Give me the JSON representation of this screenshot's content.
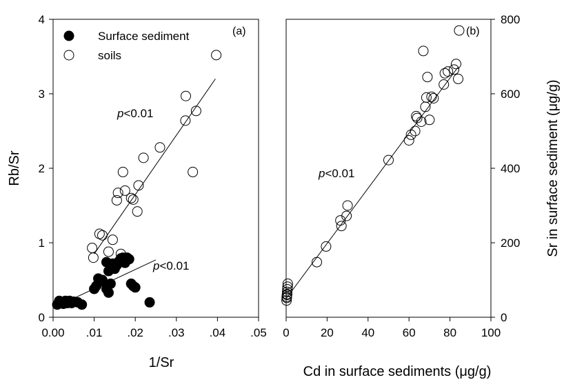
{
  "chart_data": [
    {
      "type": "scatter",
      "panel_label": "(a)",
      "xlabel": "1/Sr",
      "ylabel": "Rb/Sr",
      "xlim": [
        0.0,
        0.05
      ],
      "ylim": [
        0,
        4
      ],
      "x_ticks": [
        0.0,
        0.01,
        0.02,
        0.03,
        0.04,
        0.05
      ],
      "x_tick_labels": [
        "0.00",
        ".01",
        ".02",
        ".03",
        ".04",
        ".05"
      ],
      "y_ticks": [
        0,
        1,
        2,
        3,
        4
      ],
      "y_tick_labels": [
        "0",
        "1",
        "2",
        "3",
        "4"
      ],
      "legend_position": "top-left",
      "series": [
        {
          "name": "Surface sediment",
          "marker": "filled-circle",
          "points": [
            [
              0.001,
              0.17
            ],
            [
              0.0015,
              0.22
            ],
            [
              0.002,
              0.2
            ],
            [
              0.0025,
              0.18
            ],
            [
              0.003,
              0.22
            ],
            [
              0.0035,
              0.19
            ],
            [
              0.004,
              0.22
            ],
            [
              0.0045,
              0.19
            ],
            [
              0.005,
              0.21
            ],
            [
              0.006,
              0.2
            ],
            [
              0.007,
              0.17
            ],
            [
              0.01,
              0.38
            ],
            [
              0.0105,
              0.42
            ],
            [
              0.011,
              0.52
            ],
            [
              0.0115,
              0.48
            ],
            [
              0.012,
              0.5
            ],
            [
              0.013,
              0.38
            ],
            [
              0.0135,
              0.33
            ],
            [
              0.014,
              0.45
            ],
            [
              0.013,
              0.74
            ],
            [
              0.0135,
              0.62
            ],
            [
              0.014,
              0.68
            ],
            [
              0.0145,
              0.72
            ],
            [
              0.015,
              0.65
            ],
            [
              0.0155,
              0.7
            ],
            [
              0.016,
              0.75
            ],
            [
              0.0165,
              0.79
            ],
            [
              0.017,
              0.8
            ],
            [
              0.0175,
              0.73
            ],
            [
              0.018,
              0.8
            ],
            [
              0.0185,
              0.78
            ],
            [
              0.019,
              0.45
            ],
            [
              0.0195,
              0.42
            ],
            [
              0.02,
              0.4
            ],
            [
              0.0235,
              0.2
            ]
          ],
          "fit_line": {
            "x": [
              0.001,
              0.025
            ],
            "y": [
              0.15,
              0.77
            ]
          },
          "annotation": "p<0.01"
        },
        {
          "name": "soils",
          "marker": "open-circle",
          "points": [
            [
              0.0095,
              0.93
            ],
            [
              0.0098,
              0.8
            ],
            [
              0.0113,
              1.12
            ],
            [
              0.012,
              1.1
            ],
            [
              0.0135,
              0.88
            ],
            [
              0.0145,
              1.04
            ],
            [
              0.0155,
              1.57
            ],
            [
              0.0158,
              1.67
            ],
            [
              0.0165,
              0.85
            ],
            [
              0.017,
              1.95
            ],
            [
              0.0175,
              1.7
            ],
            [
              0.019,
              1.6
            ],
            [
              0.0195,
              1.58
            ],
            [
              0.0205,
              1.42
            ],
            [
              0.0208,
              1.77
            ],
            [
              0.022,
              2.14
            ],
            [
              0.026,
              2.28
            ],
            [
              0.0322,
              2.64
            ],
            [
              0.0323,
              2.97
            ],
            [
              0.034,
              1.95
            ],
            [
              0.0348,
              2.77
            ],
            [
              0.0397,
              3.52
            ]
          ],
          "fit_line": {
            "x": [
              0.01,
              0.0395
            ],
            "y": [
              0.85,
              3.2
            ]
          },
          "annotation": "p<0.01"
        }
      ]
    },
    {
      "type": "scatter",
      "panel_label": "(b)",
      "xlabel": "Cd in surface sediments (μg/g)",
      "ylabel": "Sr in surface sediment (μg/g)",
      "xlim": [
        0,
        100
      ],
      "ylim": [
        0,
        800
      ],
      "x_ticks": [
        0,
        20,
        40,
        60,
        80,
        100
      ],
      "x_tick_labels": [
        "0",
        "20",
        "40",
        "60",
        "80",
        "100"
      ],
      "y_ticks": [
        0,
        200,
        400,
        600,
        800
      ],
      "y_tick_labels": [
        "0",
        "200",
        "400",
        "600",
        "800"
      ],
      "y_axis_side": "right",
      "series": [
        {
          "name": "",
          "marker": "open-circle",
          "points": [
            [
              0.2,
              45
            ],
            [
              0.3,
              52
            ],
            [
              0.4,
              60
            ],
            [
              0.5,
              68
            ],
            [
              0.6,
              75
            ],
            [
              0.7,
              82
            ],
            [
              0.8,
              90
            ],
            [
              0.5,
              62
            ],
            [
              0.3,
              55
            ],
            [
              15,
              148
            ],
            [
              19.5,
              190
            ],
            [
              26.5,
              260
            ],
            [
              27,
              245
            ],
            [
              29.5,
              272
            ],
            [
              30,
              300
            ],
            [
              50,
              422
            ],
            [
              60,
              475
            ],
            [
              61,
              490
            ],
            [
              63,
              500
            ],
            [
              63.5,
              540
            ],
            [
              64,
              535
            ],
            [
              66,
              525
            ],
            [
              67,
              715
            ],
            [
              68,
              565
            ],
            [
              68.5,
              590
            ],
            [
              69,
              645
            ],
            [
              70,
              530
            ],
            [
              71,
              592
            ],
            [
              72,
              588
            ],
            [
              77,
              625
            ],
            [
              77.5,
              655
            ],
            [
              79,
              660
            ],
            [
              82,
              665
            ],
            [
              83,
              680
            ],
            [
              84,
              640
            ],
            [
              84.5,
              770
            ]
          ],
          "fit_line": {
            "x": [
              0,
              84
            ],
            "y": [
              50,
              672
            ]
          },
          "annotation": "p<0.01"
        }
      ]
    }
  ]
}
